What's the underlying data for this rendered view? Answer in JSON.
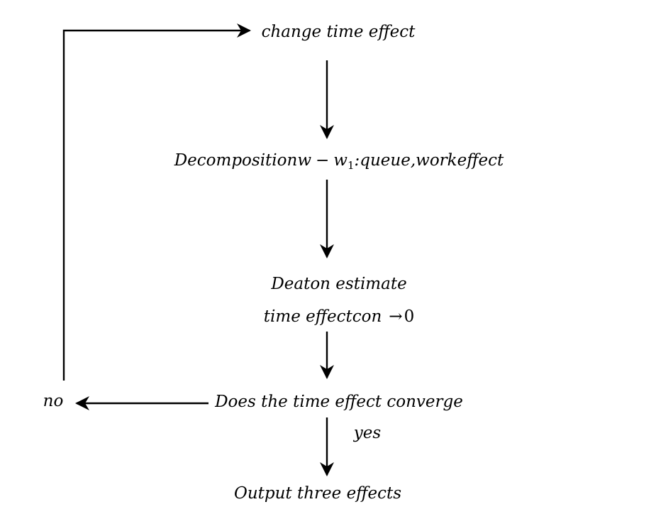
{
  "nodes": {
    "change_time_effect": "change time effect",
    "decomposition_prefix": "Decompositionw",
    "decomposition_minus": "−",
    "decomposition_w": "w",
    "decomposition_sub": "1",
    "decomposition_suffix": ":queue,workeffect",
    "deaton_estimate": "Deaton estimate",
    "time_effect_con": "time effectcon",
    "time_effect_arrow": "→",
    "time_effect_zero": "0",
    "does_converge": "Does the time effect converge",
    "output_three_effects": "Output three effects"
  },
  "edge_labels": {
    "no": "no",
    "yes": "yes"
  },
  "colors": {
    "ink": "#000000",
    "background": "#ffffff"
  }
}
